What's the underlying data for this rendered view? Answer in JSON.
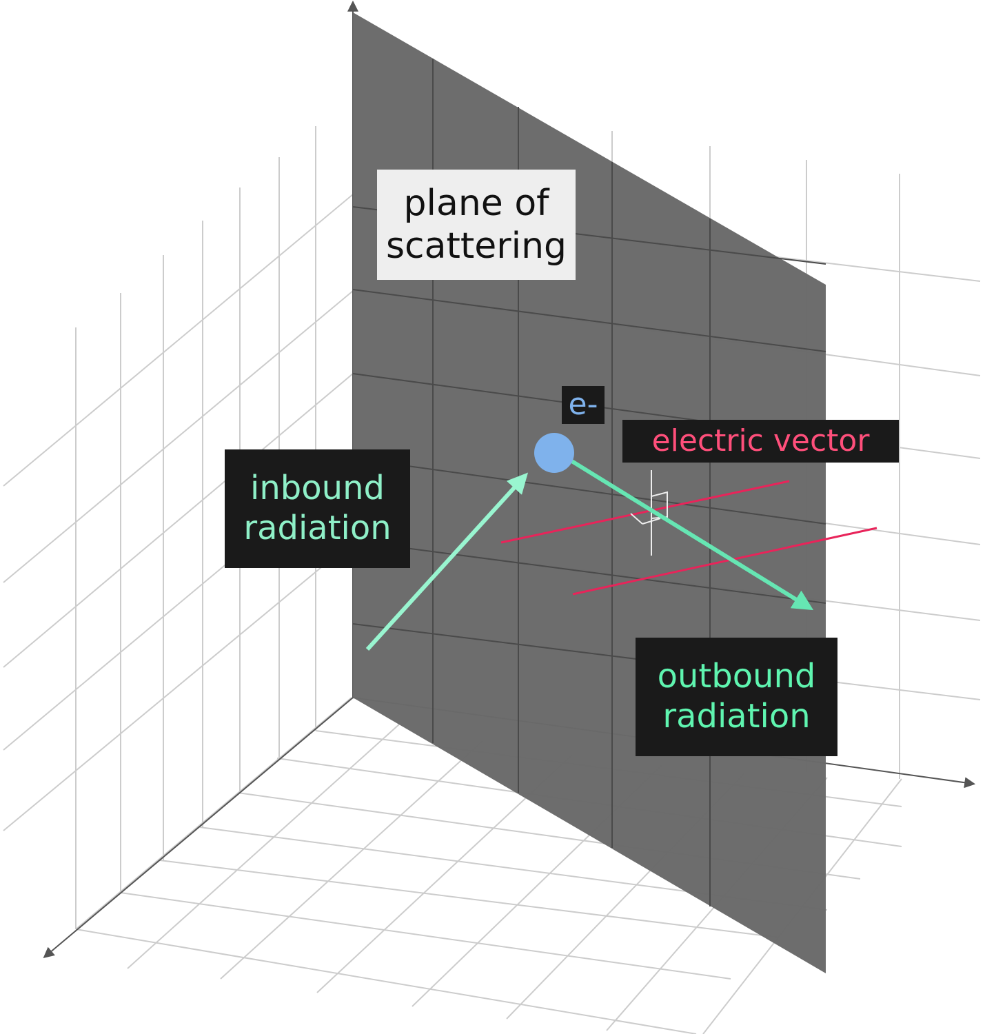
{
  "labels": {
    "plane": "plane of\nscattering",
    "electron": "e-",
    "electric_vector": "electric vector",
    "inbound": "inbound\nradiation",
    "outbound": "outbound\nradiation"
  },
  "colors": {
    "plane_fill": "#6a6a6a",
    "grid": "#cccccc",
    "axis": "#555555",
    "inbound_arrow": "#99f5d0",
    "outbound_arrow": "#66e6b3",
    "electric_vector": "#e8245a",
    "electron": "#7fb2ec",
    "label_dark_bg": "#1a1a1a",
    "label_light_bg": "#eeeeee",
    "inbound_text": "#8ff0c8",
    "outbound_text": "#5ff5b0",
    "electron_text": "#7fb2ec",
    "electric_text": "#ff4f7b",
    "plane_text": "#111111"
  }
}
